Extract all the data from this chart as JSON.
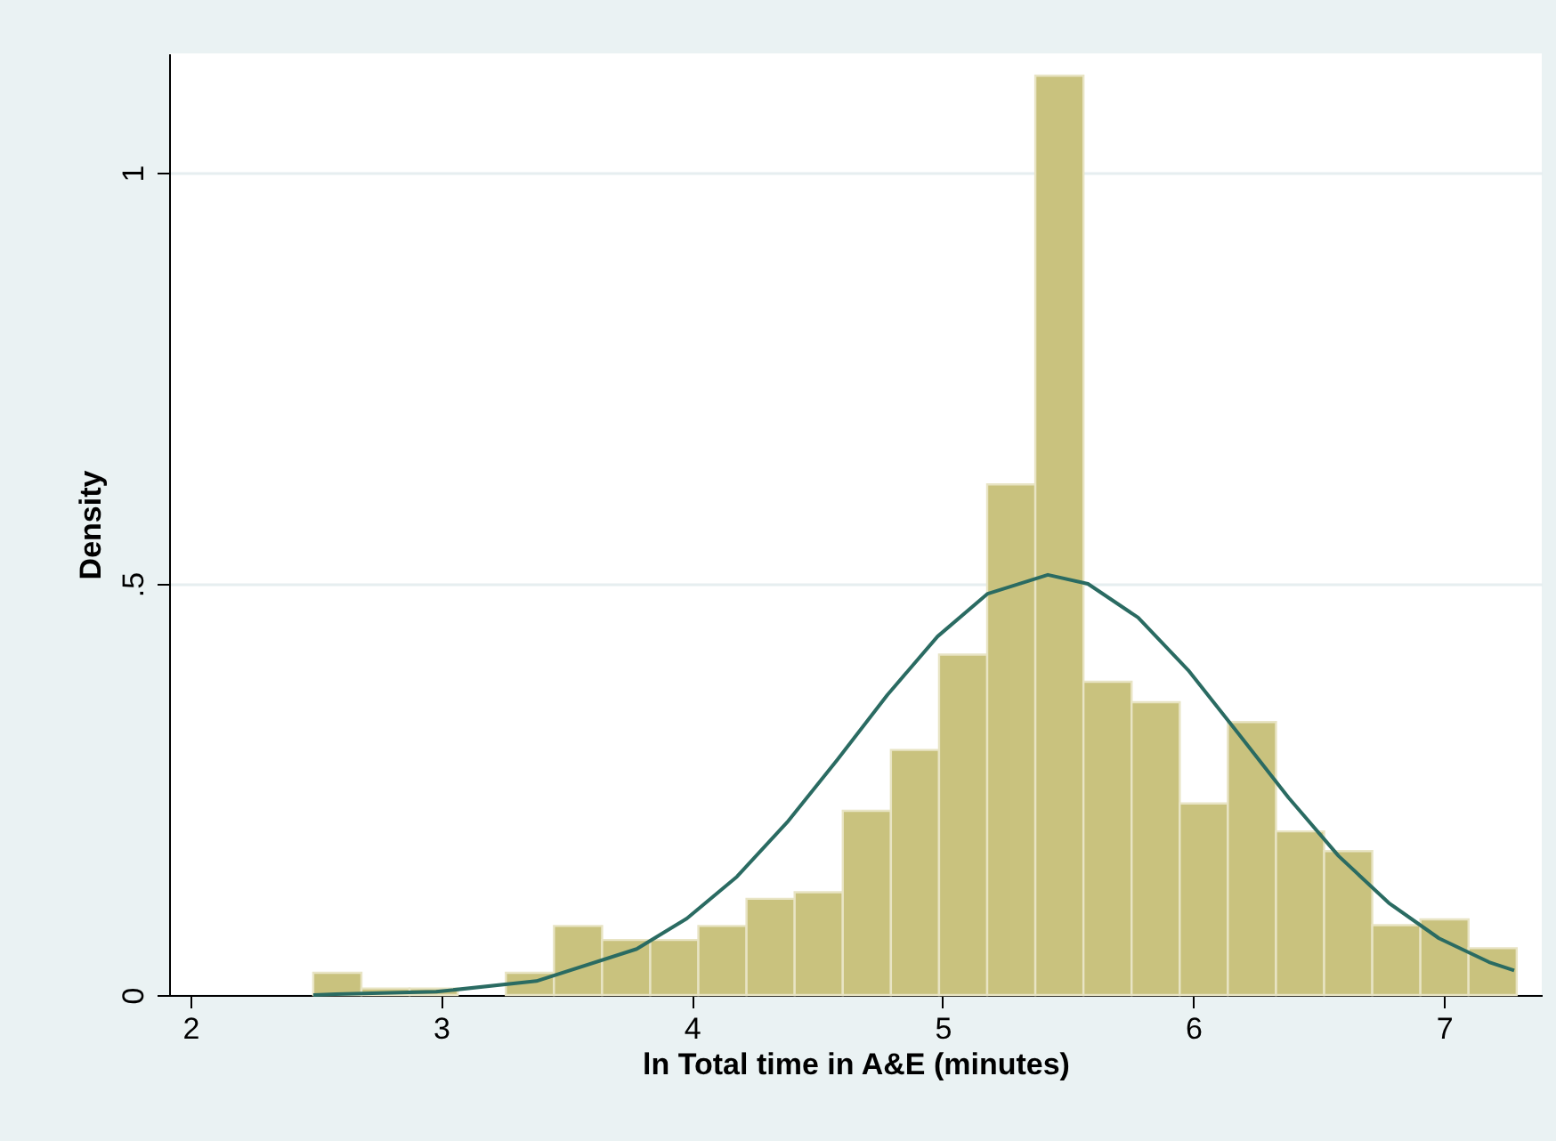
{
  "chart_data": {
    "type": "histogram",
    "xlabel": "ln Total time in A&E (minutes)",
    "ylabel": "Density",
    "bins": [
      2.49,
      2.682,
      2.874,
      3.066,
      3.258,
      3.45,
      3.642,
      3.834,
      4.026,
      4.218,
      4.41,
      4.602,
      4.794,
      4.986,
      5.178,
      5.37,
      5.562,
      5.754,
      5.946,
      6.138,
      6.33,
      6.522,
      6.714,
      6.906,
      7.098,
      7.29
    ],
    "values": [
      0.027,
      0.008,
      0.008,
      0,
      0.027,
      0.084,
      0.067,
      0.067,
      0.084,
      0.117,
      0.125,
      0.224,
      0.298,
      0.414,
      0.621,
      1.118,
      0.381,
      0.356,
      0.233,
      0.332,
      0.199,
      0.175,
      0.085,
      0.092,
      0.057
    ],
    "color": "#c9c27e",
    "series": [
      {
        "type": "line",
        "color": "#2a6b62",
        "x": [
          2.49,
          2.58,
          2.98,
          3.38,
          3.78,
          3.98,
          4.18,
          4.38,
          4.58,
          4.78,
          4.98,
          5.18,
          5.42,
          5.58,
          5.78,
          5.98,
          6.18,
          6.38,
          6.58,
          6.78,
          6.98,
          7.18,
          7.28
        ],
        "values": [
          0,
          0.001,
          0.004,
          0.017,
          0.056,
          0.093,
          0.144,
          0.21,
          0.286,
          0.365,
          0.436,
          0.488,
          0.511,
          0.5,
          0.459,
          0.395,
          0.318,
          0.24,
          0.169,
          0.112,
          0.069,
          0.04,
          0.03
        ]
      }
    ],
    "xlim": [
      1.915,
      7.39
    ],
    "ylim": [
      0,
      1.145
    ],
    "xticks": [
      2,
      3,
      4,
      5,
      6,
      7
    ],
    "yticks": [
      0,
      {
        "value": 0.5,
        "label": ".5"
      },
      1
    ],
    "grid": "y",
    "legend": false
  }
}
